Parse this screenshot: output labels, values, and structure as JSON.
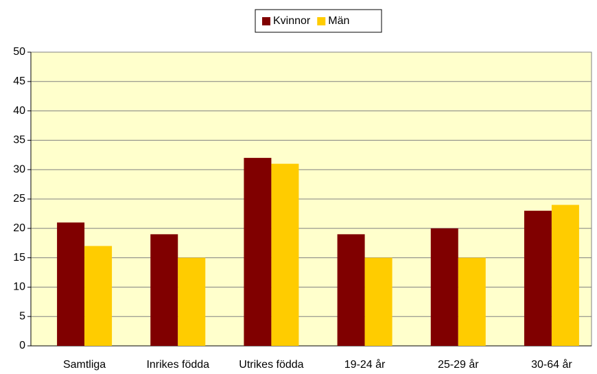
{
  "chart_data": {
    "type": "bar",
    "categories": [
      "Samtliga",
      "Inrikes födda",
      "Utrikes födda",
      "19-24 år",
      "25-29 år",
      "30-64 år"
    ],
    "series": [
      {
        "name": "Kvinnor",
        "color": "#800000",
        "values": [
          21,
          19,
          32,
          19,
          20,
          23
        ]
      },
      {
        "name": "Män",
        "color": "#ffcc00",
        "values": [
          17,
          15,
          31,
          15,
          15,
          24
        ]
      }
    ],
    "ylim": [
      0,
      50
    ],
    "yticks": [
      0,
      5,
      10,
      15,
      20,
      25,
      30,
      35,
      40,
      45,
      50
    ],
    "grid": true,
    "plot_background": "#ffffcc",
    "legend": "top"
  }
}
